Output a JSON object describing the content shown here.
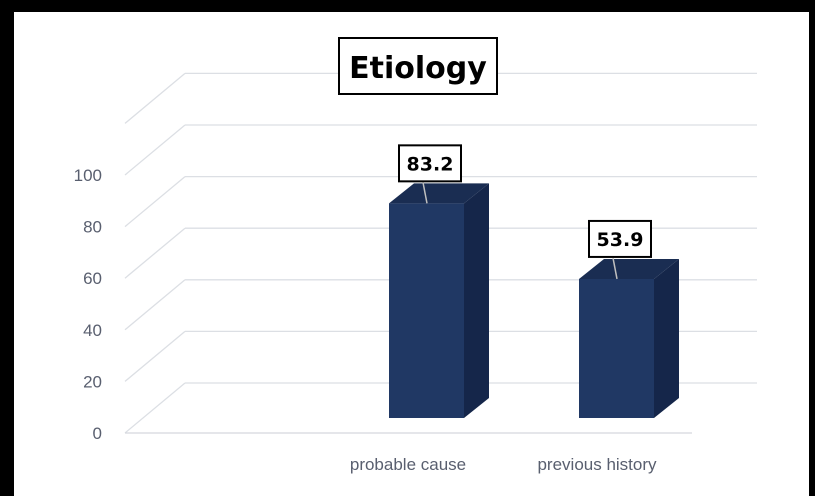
{
  "chart_data": {
    "type": "bar",
    "title": "Etiology",
    "categories": [
      "probable cause",
      "previous history"
    ],
    "values": [
      83.2,
      53.9
    ],
    "data_labels": [
      "83.2",
      "53.9"
    ],
    "y_ticks": [
      "0",
      "20",
      "40",
      "60",
      "80",
      "100"
    ],
    "ylim": [
      0,
      120
    ],
    "grid": true,
    "three_d": true,
    "bar_color": "#203864",
    "bar_side_color": "#15264a",
    "bar_top_color": "#1a2d52"
  }
}
